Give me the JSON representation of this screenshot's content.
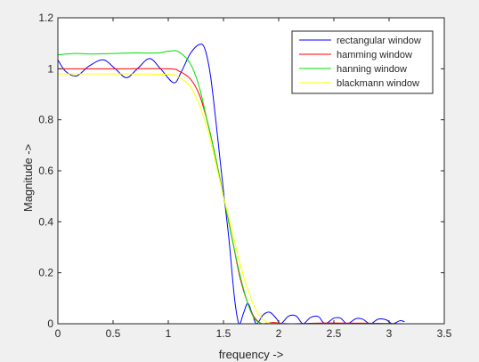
{
  "chart_data": {
    "type": "line",
    "xlabel": "frequency ->",
    "ylabel": "Magnitude ->",
    "xlim": [
      0,
      3.5
    ],
    "ylim": [
      0,
      1.2
    ],
    "xticks": [
      "0",
      "0.5",
      "1",
      "1.5",
      "2",
      "2.5",
      "3",
      "3.5"
    ],
    "yticks": [
      "0",
      "0.2",
      "0.4",
      "0.6",
      "0.8",
      "1",
      "1.2"
    ],
    "grid": false,
    "legend_position": "top-right",
    "series": [
      {
        "name": "rectangular window",
        "color": "#0000ff",
        "points": [
          [
            0,
            1.035
          ],
          [
            0.07,
            0.99
          ],
          [
            0.17,
            0.972
          ],
          [
            0.28,
            1.01
          ],
          [
            0.41,
            1.035
          ],
          [
            0.52,
            1.0
          ],
          [
            0.62,
            0.965
          ],
          [
            0.72,
            1.0
          ],
          [
            0.83,
            1.04
          ],
          [
            0.93,
            1.0
          ],
          [
            1.05,
            0.945
          ],
          [
            1.12,
            0.99
          ],
          [
            1.2,
            1.06
          ],
          [
            1.28,
            1.095
          ],
          [
            1.33,
            1.08
          ],
          [
            1.38,
            0.98
          ],
          [
            1.43,
            0.8
          ],
          [
            1.5,
            0.52
          ],
          [
            1.55,
            0.33
          ],
          [
            1.6,
            0.1
          ],
          [
            1.64,
            0.0
          ],
          [
            1.68,
            0.04
          ],
          [
            1.72,
            0.08
          ],
          [
            1.76,
            0.04
          ],
          [
            1.8,
            0.0
          ],
          [
            1.86,
            0.035
          ],
          [
            1.92,
            0.045
          ],
          [
            1.98,
            0.02
          ],
          [
            2.02,
            0.0
          ],
          [
            2.09,
            0.03
          ],
          [
            2.16,
            0.03
          ],
          [
            2.22,
            0.0
          ],
          [
            2.29,
            0.025
          ],
          [
            2.36,
            0.028
          ],
          [
            2.42,
            0.0
          ],
          [
            2.5,
            0.022
          ],
          [
            2.56,
            0.022
          ],
          [
            2.62,
            0.0
          ],
          [
            2.7,
            0.02
          ],
          [
            2.76,
            0.018
          ],
          [
            2.83,
            0.0
          ],
          [
            2.9,
            0.018
          ],
          [
            2.97,
            0.016
          ],
          [
            3.03,
            0.0
          ],
          [
            3.1,
            0.012
          ],
          [
            3.14,
            0.008
          ]
        ]
      },
      {
        "name": "hamming window",
        "color": "#ff0000",
        "points": [
          [
            0,
            1.0
          ],
          [
            0.5,
            1.0
          ],
          [
            1.0,
            1.0
          ],
          [
            1.1,
            0.99
          ],
          [
            1.2,
            0.96
          ],
          [
            1.28,
            0.9
          ],
          [
            1.35,
            0.8
          ],
          [
            1.42,
            0.67
          ],
          [
            1.5,
            0.5
          ],
          [
            1.58,
            0.33
          ],
          [
            1.65,
            0.18
          ],
          [
            1.72,
            0.08
          ],
          [
            1.78,
            0.025
          ],
          [
            1.85,
            0.0
          ],
          [
            1.95,
            0.005
          ],
          [
            2.1,
            0.0
          ],
          [
            2.5,
            0.003
          ],
          [
            3.14,
            0.0
          ]
        ]
      },
      {
        "name": "hanning window",
        "color": "#00e000",
        "points": [
          [
            0,
            1.055
          ],
          [
            0.15,
            1.06
          ],
          [
            0.3,
            1.058
          ],
          [
            0.5,
            1.06
          ],
          [
            0.7,
            1.062
          ],
          [
            0.9,
            1.062
          ],
          [
            1.02,
            1.07
          ],
          [
            1.1,
            1.065
          ],
          [
            1.2,
            1.02
          ],
          [
            1.28,
            0.93
          ],
          [
            1.35,
            0.8
          ],
          [
            1.43,
            0.65
          ],
          [
            1.5,
            0.5
          ],
          [
            1.58,
            0.33
          ],
          [
            1.65,
            0.19
          ],
          [
            1.72,
            0.08
          ],
          [
            1.78,
            0.02
          ],
          [
            1.85,
            0.0
          ],
          [
            1.9,
            0.002
          ],
          [
            2.1,
            0.0
          ],
          [
            2.5,
            0.0
          ],
          [
            3.14,
            0.0
          ]
        ]
      },
      {
        "name": "blackmann window",
        "color": "#ffff00",
        "points": [
          [
            0,
            0.98
          ],
          [
            0.5,
            0.98
          ],
          [
            1.0,
            0.978
          ],
          [
            1.1,
            0.965
          ],
          [
            1.2,
            0.93
          ],
          [
            1.28,
            0.86
          ],
          [
            1.35,
            0.77
          ],
          [
            1.42,
            0.65
          ],
          [
            1.5,
            0.5
          ],
          [
            1.58,
            0.36
          ],
          [
            1.66,
            0.22
          ],
          [
            1.74,
            0.11
          ],
          [
            1.82,
            0.035
          ],
          [
            1.9,
            0.005
          ],
          [
            2.0,
            0.0
          ],
          [
            2.5,
            0.0
          ],
          [
            3.14,
            0.0
          ]
        ]
      }
    ]
  }
}
